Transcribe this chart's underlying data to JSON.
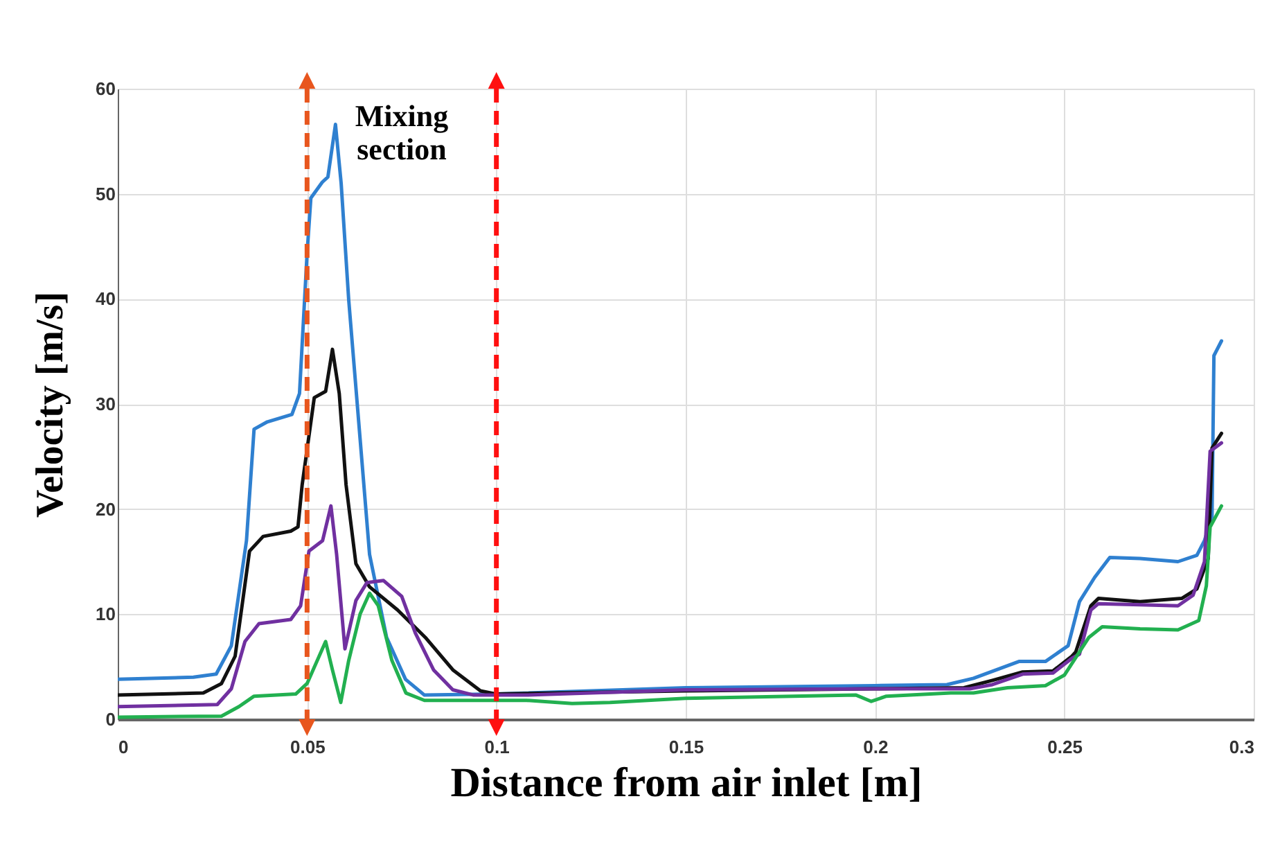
{
  "chart_data": {
    "type": "line",
    "xlabel": "Distance from air inlet [m]",
    "ylabel": "Velocity [m/s]",
    "xlim": [
      0,
      0.3
    ],
    "xticks": [
      0,
      0.05,
      0.1,
      0.15,
      0.2,
      0.25,
      0.3
    ],
    "ylim": [
      0,
      60
    ],
    "yticks": [
      0,
      10,
      20,
      30,
      40,
      50,
      60
    ],
    "grid": true,
    "line_style": "solid",
    "ref_lines": [
      {
        "axis": "x",
        "value": 0.05,
        "color": "#e8561e",
        "line_style": "dashed"
      },
      {
        "axis": "x",
        "value": 0.1,
        "color": "#ff1010",
        "line_style": "dashed"
      }
    ],
    "annotations": [
      "Mixing section"
    ],
    "series": [
      {
        "color": "#2f80d0",
        "x": [
          0,
          0.02,
          0.026,
          0.03,
          0.034,
          0.036,
          0.0395,
          0.046,
          0.048,
          0.05,
          0.051,
          0.054,
          0.0555,
          0.0575,
          0.059,
          0.061,
          0.064,
          0.0665,
          0.071,
          0.076,
          0.081,
          0.1,
          0.15,
          0.2,
          0.219,
          0.226,
          0.238,
          0.245,
          0.251,
          0.254,
          0.258,
          0.262,
          0.27,
          0.28,
          0.285,
          0.287,
          0.289,
          0.2895,
          0.2915
        ],
        "values": [
          3.8,
          4.0,
          4.3,
          7,
          17,
          27.6,
          28.3,
          29,
          31,
          44.3,
          49.6,
          51.1,
          51.6,
          56.6,
          51,
          39.9,
          26.7,
          15.7,
          7.8,
          3.8,
          2.3,
          2.4,
          3,
          3.2,
          3.3,
          3.9,
          5.5,
          5.5,
          7,
          11.2,
          13.5,
          15.4,
          15.3,
          15,
          15.6,
          17,
          19.3,
          34.6,
          36
        ]
      },
      {
        "color": "#111111",
        "x": [
          0,
          0.0226,
          0.0274,
          0.031,
          0.0348,
          0.0384,
          0.0457,
          0.0476,
          0.0487,
          0.0519,
          0.0549,
          0.0567,
          0.0585,
          0.0603,
          0.0629,
          0.0665,
          0.0739,
          0.0812,
          0.0885,
          0.0958,
          0.1,
          0.15,
          0.2,
          0.2235,
          0.231,
          0.239,
          0.247,
          0.252,
          0.253,
          0.257,
          0.259,
          0.27,
          0.281,
          0.285,
          0.288,
          0.289,
          0.2915
        ],
        "values": [
          2.3,
          2.5,
          3.4,
          6,
          16,
          17.4,
          17.9,
          18.3,
          22.3,
          30.6,
          31.2,
          35.2,
          31,
          22.3,
          14.8,
          12.6,
          10.4,
          7.8,
          4.7,
          2.7,
          2.4,
          2.7,
          2.9,
          3.0,
          3.7,
          4.5,
          4.6,
          6,
          6.4,
          10.8,
          11.5,
          11.2,
          11.5,
          12.4,
          15.3,
          25.8,
          27.2
        ]
      },
      {
        "color": "#7030a0",
        "x": [
          0,
          0.0263,
          0.03,
          0.0336,
          0.0373,
          0.0457,
          0.0483,
          0.0505,
          0.0541,
          0.0563,
          0.0578,
          0.06,
          0.0629,
          0.0658,
          0.0702,
          0.075,
          0.0786,
          0.0834,
          0.0885,
          0.094,
          0.108,
          0.15,
          0.2,
          0.225,
          0.231,
          0.239,
          0.247,
          0.252,
          0.254,
          0.257,
          0.259,
          0.27,
          0.28,
          0.284,
          0.287,
          0.2885,
          0.2915
        ],
        "values": [
          1.2,
          1.4,
          2.9,
          7.4,
          9.1,
          9.5,
          10.8,
          16,
          17,
          20.3,
          15.7,
          6.7,
          11.3,
          13,
          13.2,
          11.7,
          8.2,
          4.7,
          2.8,
          2.3,
          2.3,
          2.8,
          2.9,
          2.9,
          3.3,
          4.3,
          4.4,
          5.8,
          6.2,
          10.4,
          11,
          10.9,
          10.8,
          11.8,
          15,
          25.5,
          26.3
        ]
      },
      {
        "color": "#22b050",
        "x": [
          0,
          0.0274,
          0.032,
          0.036,
          0.047,
          0.05,
          0.0549,
          0.0567,
          0.0589,
          0.061,
          0.064,
          0.0665,
          0.0688,
          0.0724,
          0.0761,
          0.081,
          0.108,
          0.12,
          0.13,
          0.15,
          0.195,
          0.199,
          0.203,
          0.22,
          0.226,
          0.235,
          0.245,
          0.25,
          0.2565,
          0.26,
          0.27,
          0.28,
          0.2855,
          0.2875,
          0.2885,
          0.2915
        ],
        "values": [
          0.2,
          0.3,
          1.2,
          2.2,
          2.4,
          3.4,
          7.4,
          4.7,
          1.6,
          5.6,
          10,
          12,
          10.8,
          5.6,
          2.5,
          1.8,
          1.8,
          1.5,
          1.6,
          2.0,
          2.3,
          1.7,
          2.2,
          2.5,
          2.5,
          3.0,
          3.2,
          4.2,
          7.8,
          8.8,
          8.6,
          8.5,
          9.4,
          12.7,
          18.3,
          20.3
        ]
      }
    ]
  }
}
